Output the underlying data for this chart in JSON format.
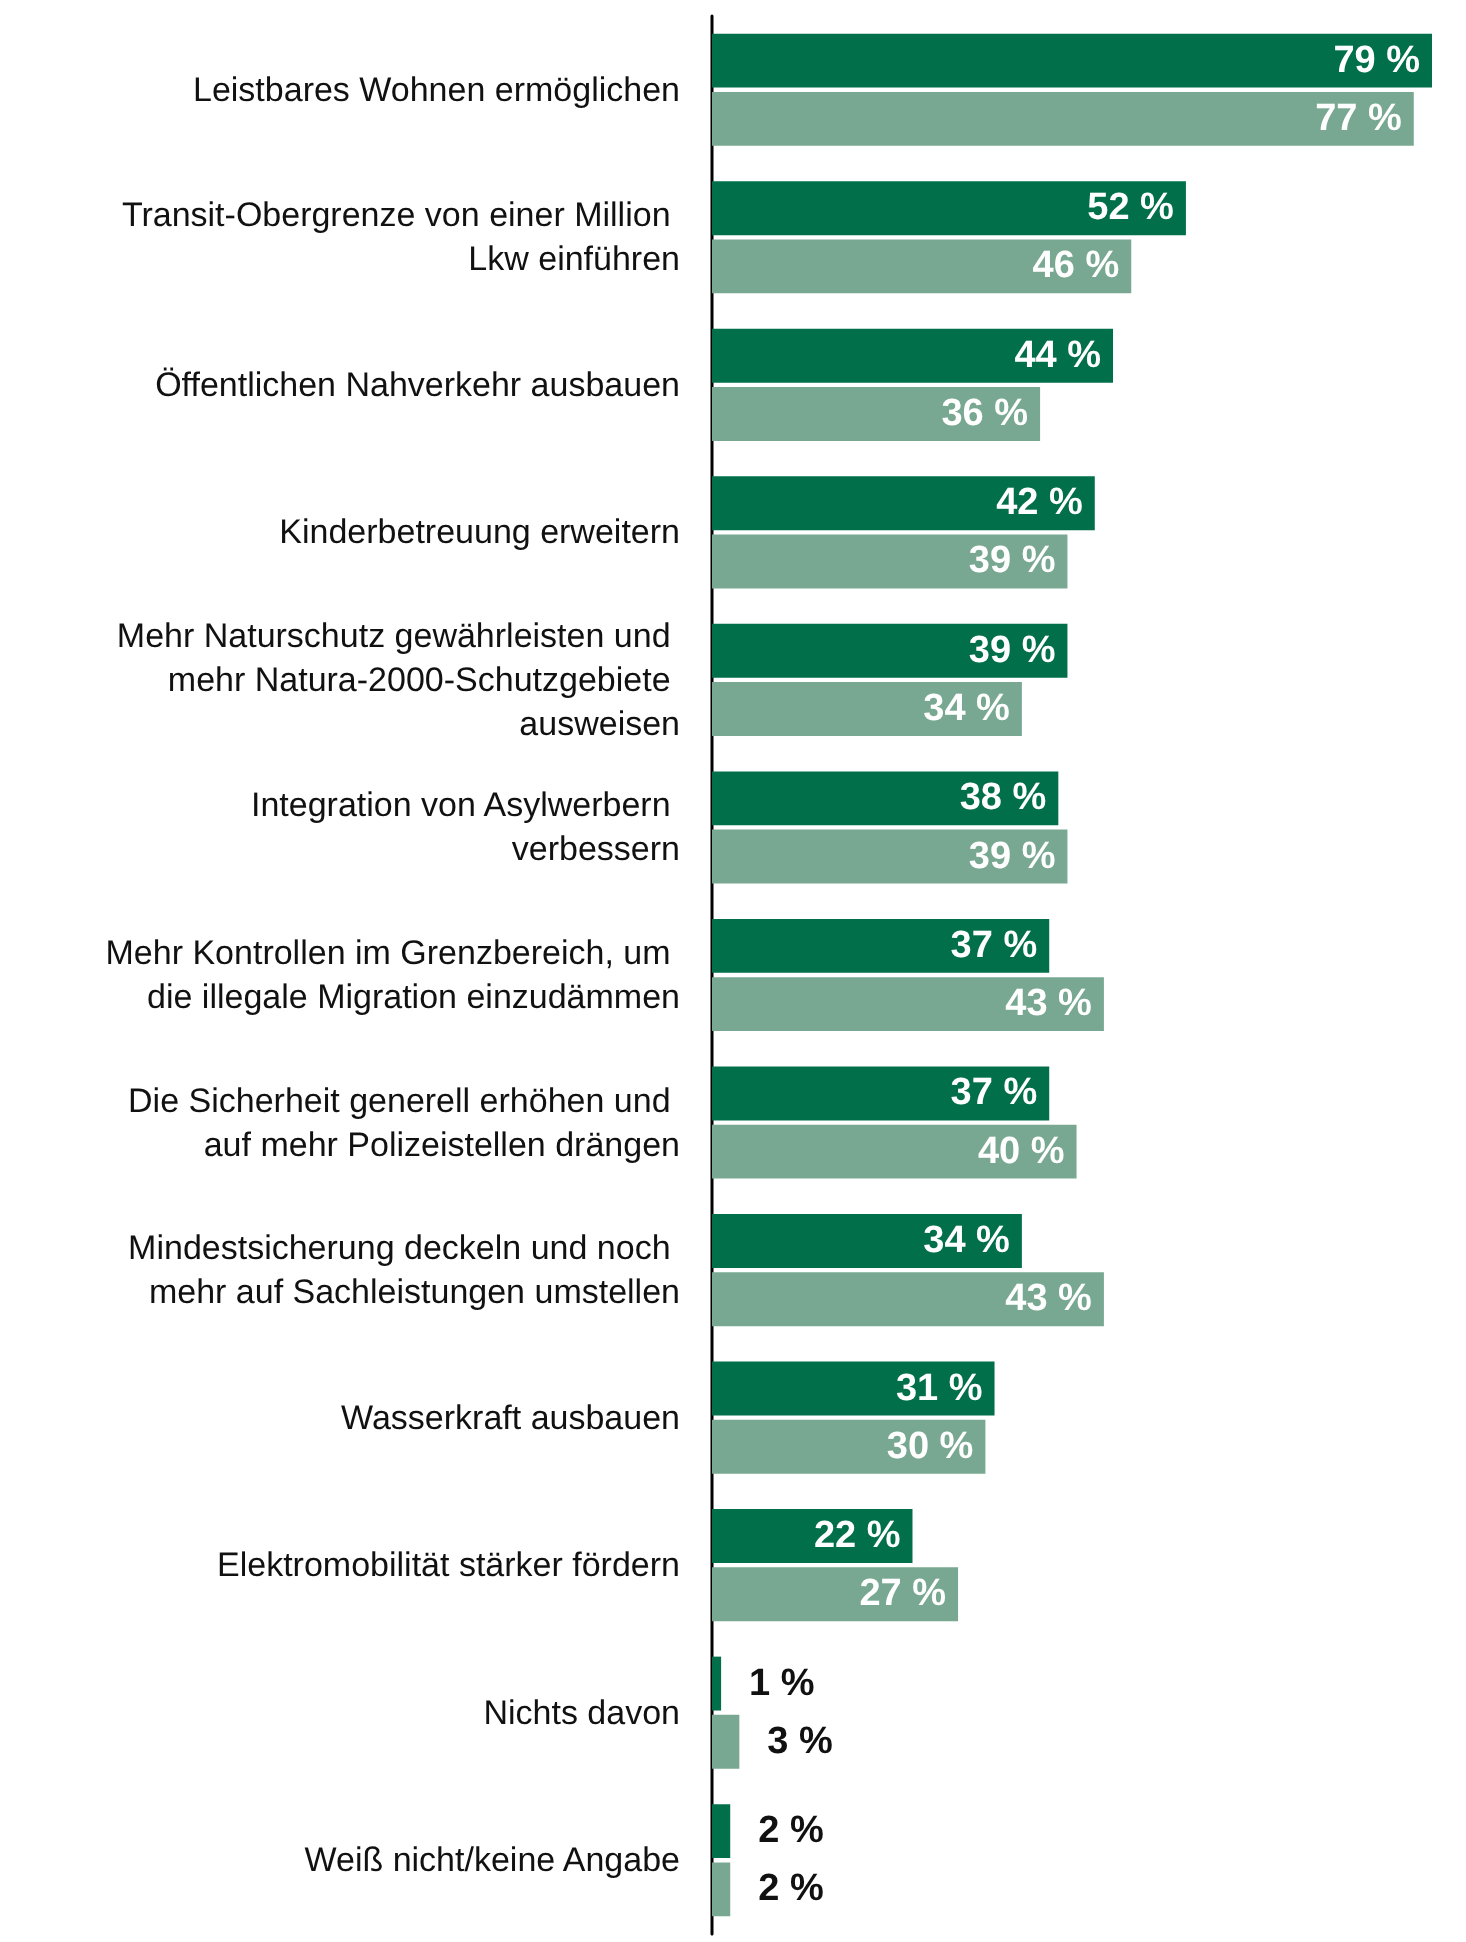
{
  "chart_data": {
    "type": "bar",
    "orientation": "horizontal",
    "categories": [
      "Leistbares Wohnen ermöglichen",
      "Transit-Obergrenze von einer Million Lkw einführen",
      "Öffentlichen Nahverkehr ausbauen",
      "Kinderbetreuung erweitern",
      "Mehr Naturschutz gewährleisten und mehr Natura-2000-Schutzgebiete ausweisen",
      "Integration von Asylwerbern verbessern",
      "Mehr Kontrollen im Grenzbereich, um die illegale Migration einzudämmen",
      "Die Sicherheit generell erhöhen und auf mehr Polizeistellen drängen",
      "Mindestsicherung deckeln und noch mehr auf Sachleistungen umstellen",
      "Wasserkraft ausbauen",
      "Elektromobilität stärker fördern",
      "Nichts davon",
      "Weiß nicht/keine Angabe"
    ],
    "series": [
      {
        "color": "#006f4a",
        "values": [
          79,
          52,
          44,
          42,
          39,
          38,
          37,
          37,
          34,
          31,
          22,
          1,
          2
        ],
        "value_labels": [
          "79 %",
          "52 %",
          "44 %",
          "42 %",
          "39 %",
          "38 %",
          "37 %",
          "37 %",
          "34 %",
          "31 %",
          "22 %",
          "1 %",
          "2 %"
        ]
      },
      {
        "color": "#78a891",
        "values": [
          77,
          46,
          36,
          39,
          34,
          39,
          43,
          40,
          43,
          30,
          27,
          3,
          2
        ],
        "value_labels": [
          "77 %",
          "46 %",
          "36 %",
          "39 %",
          "34 %",
          "39 %",
          "43 %",
          "40 %",
          "43 %",
          "30 %",
          "27 %",
          "3 %",
          "2 %"
        ]
      }
    ]
  }
}
